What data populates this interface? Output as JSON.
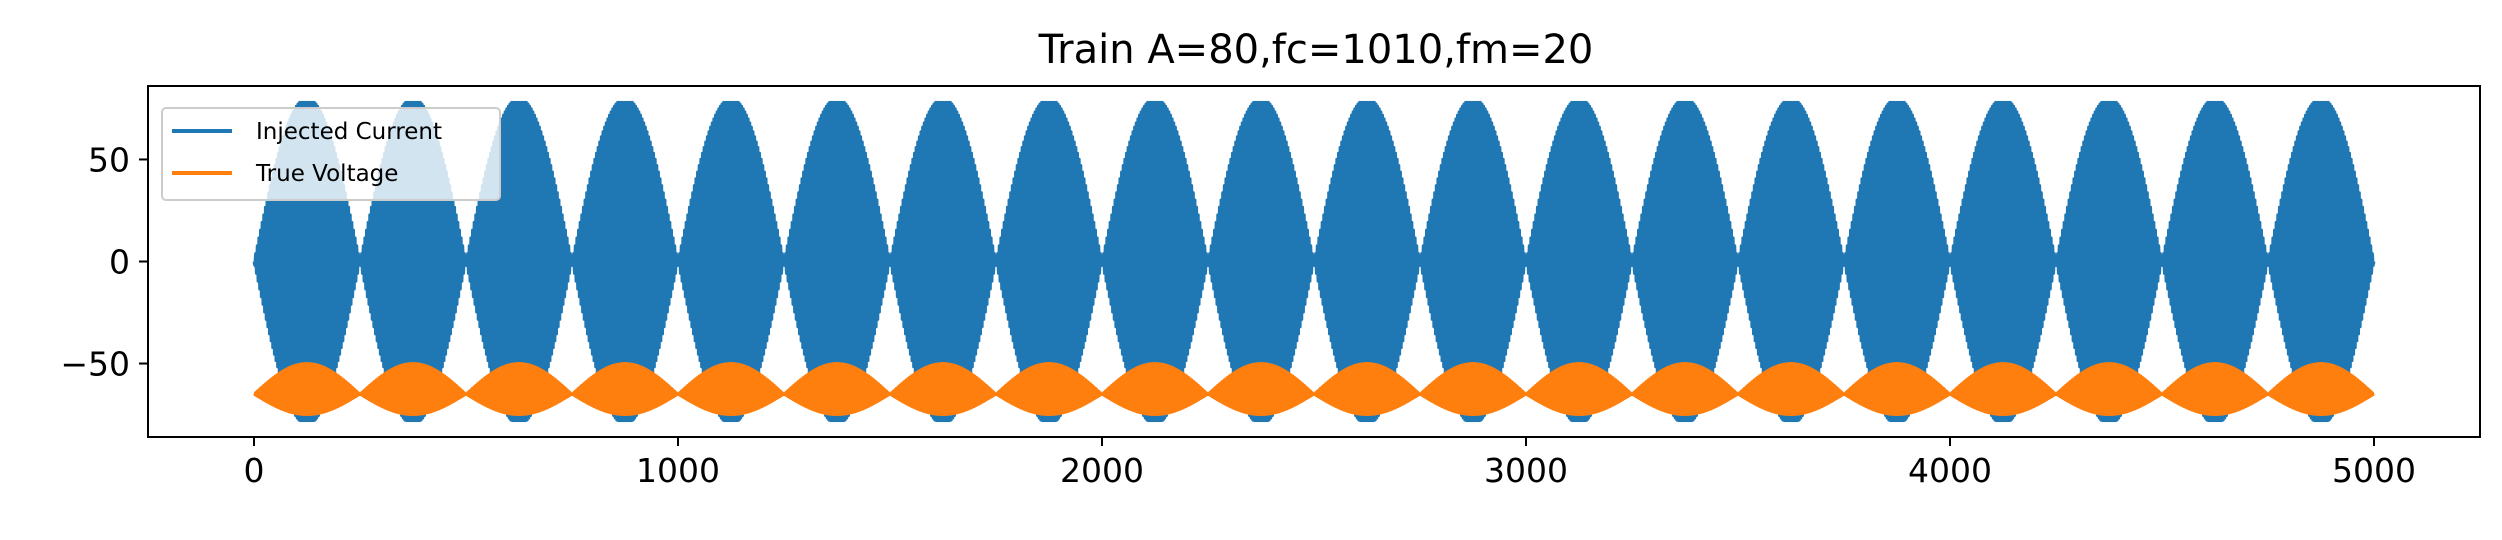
{
  "chart_data": {
    "type": "line",
    "title": "Train A=80,fc=1010,fm=20",
    "xlabel": "",
    "ylabel": "",
    "xlim": [
      -250,
      5250
    ],
    "ylim": [
      -86,
      86
    ],
    "x_ticks": [
      0,
      1000,
      2000,
      3000,
      4000,
      5000
    ],
    "x_tick_labels": [
      "0",
      "1000",
      "2000",
      "3000",
      "4000",
      "5000"
    ],
    "y_ticks": [
      -50,
      0,
      50
    ],
    "y_tick_labels": [
      "−50",
      "0",
      "50"
    ],
    "grid": false,
    "legend_position": "top-left",
    "x_range": [
      0,
      5000
    ],
    "series": [
      {
        "name": "Injected Current",
        "color": "#1f77b4",
        "amplitude": 80,
        "carrier_frequency": 1010,
        "modulation_frequency": 20,
        "envelope_lobes": 20,
        "max": 78,
        "min": -78
      },
      {
        "name": "True Voltage",
        "color": "#ff7f0e",
        "baseline": -65,
        "envelope_lobes": 20,
        "max": -50,
        "min": -75
      }
    ]
  }
}
